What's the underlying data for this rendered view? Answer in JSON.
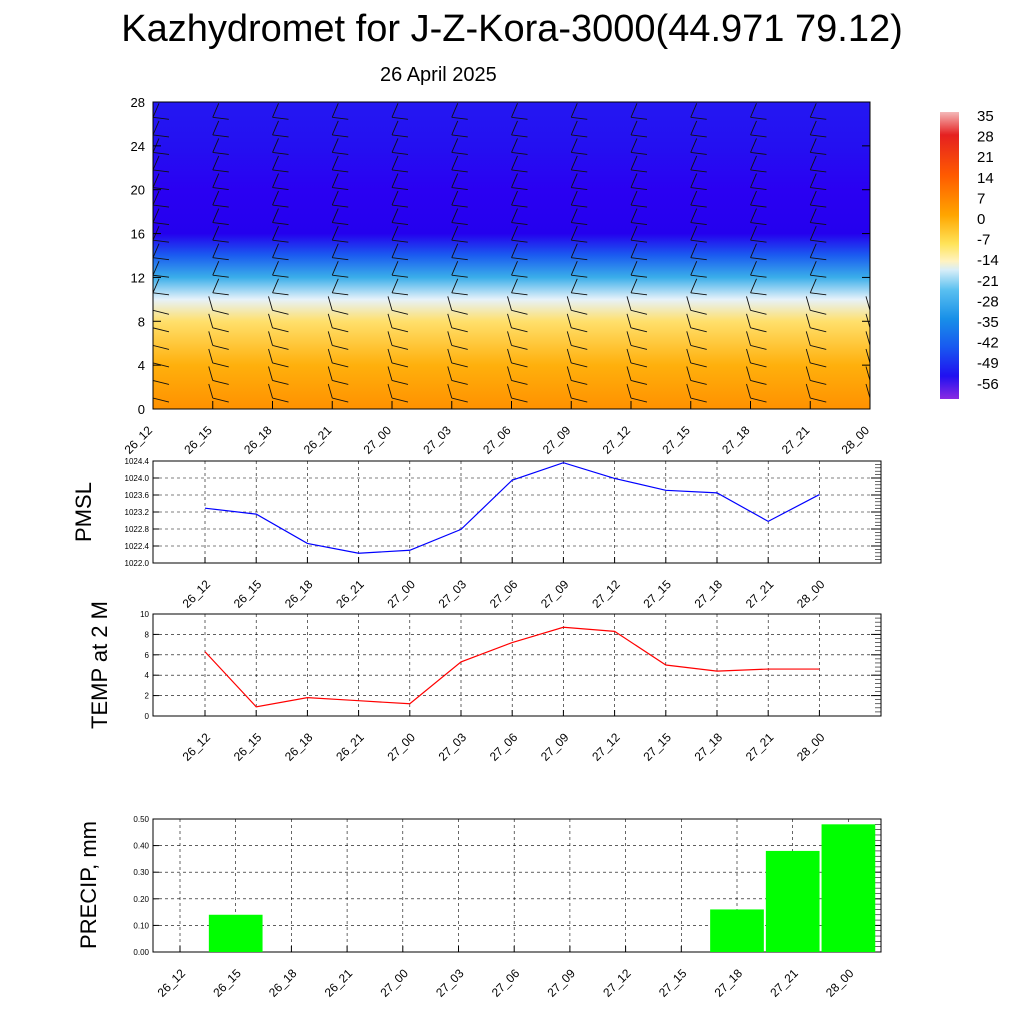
{
  "title": "Kazhydromet for J-Z-Kora-3000(44.971 79.12)",
  "subtitle": "26 April 2025",
  "chart_data": [
    {
      "type": "heatmap",
      "title": "",
      "x_ticks": [
        "26_12",
        "26_15",
        "26_18",
        "26_21",
        "27_00",
        "27_03",
        "27_06",
        "27_09",
        "27_12",
        "27_15",
        "27_18",
        "27_21",
        "28_00"
      ],
      "y_ticks": [
        "0",
        "4",
        "8",
        "12",
        "16",
        "20",
        "24",
        "28"
      ],
      "ylim": [
        0,
        28
      ],
      "colorbar_labels": [
        "35",
        "28",
        "21",
        "14",
        "7",
        "0",
        "-7",
        "-14",
        "-21",
        "-28",
        "-35",
        "-42",
        "-49",
        "-56"
      ],
      "layers": [
        {
          "height": 0,
          "value": 7
        },
        {
          "height": 4,
          "value": 3
        },
        {
          "height": 8,
          "value": -4
        },
        {
          "height": 10,
          "value": -14
        },
        {
          "height": 12,
          "value": -28
        },
        {
          "height": 14,
          "value": -42
        },
        {
          "height": 16,
          "value": -56
        },
        {
          "height": 20,
          "value": -60
        },
        {
          "height": 24,
          "value": -52
        },
        {
          "height": 28,
          "value": -50
        }
      ]
    },
    {
      "type": "line",
      "ylabel": "PMSL",
      "categories": [
        "26_12",
        "26_15",
        "26_18",
        "26_21",
        "27_00",
        "27_03",
        "27_06",
        "27_09",
        "27_12",
        "27_15",
        "27_18",
        "27_21",
        "28_00"
      ],
      "values": [
        1023.29,
        1023.15,
        1022.46,
        1022.23,
        1022.3,
        1022.79,
        1023.95,
        1024.36,
        1023.99,
        1023.71,
        1023.65,
        1022.98,
        1023.61
      ],
      "yticks": [
        "1022.0",
        "1022.4",
        "1022.8",
        "1023.2",
        "1023.6",
        "1024.0",
        "1024.4"
      ],
      "ylim": [
        1022.0,
        1024.4
      ],
      "color": "#0000ff"
    },
    {
      "type": "line",
      "ylabel": "TEMP at 2 M",
      "categories": [
        "26_12",
        "26_15",
        "26_18",
        "26_21",
        "27_00",
        "27_03",
        "27_06",
        "27_09",
        "27_12",
        "27_15",
        "27_18",
        "27_21",
        "28_00"
      ],
      "values": [
        6.3,
        0.9,
        1.8,
        1.5,
        1.2,
        5.3,
        7.2,
        8.7,
        8.3,
        5.0,
        4.4,
        4.6,
        4.6
      ],
      "yticks": [
        "0",
        "2",
        "4",
        "6",
        "8",
        "10"
      ],
      "ylim": [
        0,
        10
      ],
      "color": "#ff0000"
    },
    {
      "type": "bar",
      "ylabel": "PRECIP, mm",
      "categories": [
        "26_12",
        "26_15",
        "26_18",
        "26_21",
        "27_00",
        "27_03",
        "27_06",
        "27_09",
        "27_12",
        "27_15",
        "27_18",
        "27_21",
        "28_00"
      ],
      "values": [
        0,
        0.14,
        0,
        0,
        0,
        0,
        0,
        0,
        0,
        0,
        0.16,
        0.38,
        0.48
      ],
      "yticks": [
        "0.00",
        "0.10",
        "0.20",
        "0.30",
        "0.40",
        "0.50"
      ],
      "ylim": [
        0,
        0.5
      ],
      "color": "#00ff00"
    }
  ]
}
